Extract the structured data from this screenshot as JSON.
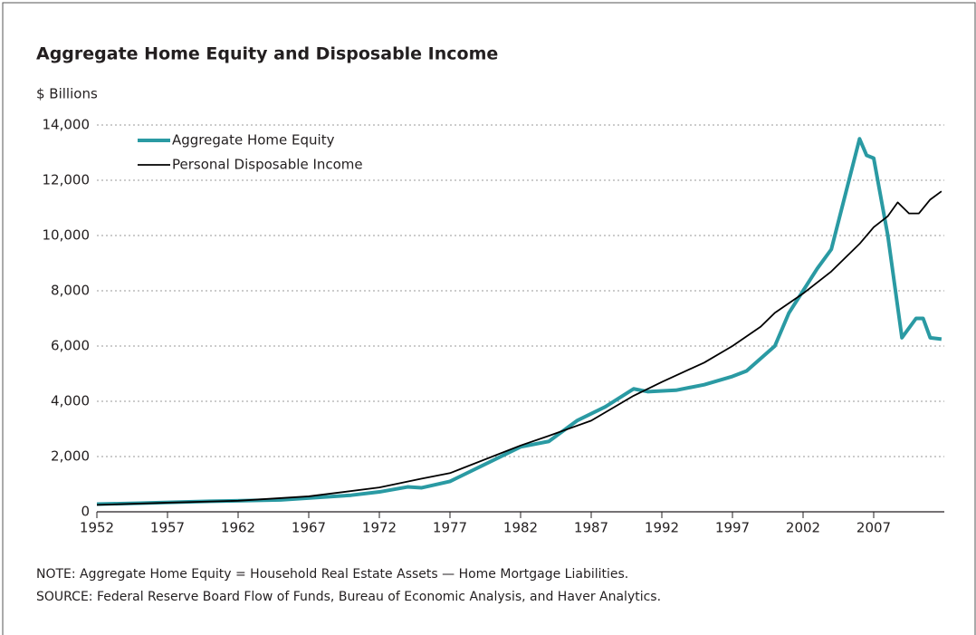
{
  "chart_data": {
    "type": "line",
    "title": "Aggregate Home Equity and Disposable Income",
    "y_label": "$ Billions",
    "note": "NOTE: Aggregate Home Equity = Household Real Estate Assets — Home Mortgage Liabilities.",
    "source": "SOURCE: Federal Reserve Board Flow of Funds, Bureau of Economic Analysis, and Haver Analytics.",
    "xlim": [
      1952,
      2012
    ],
    "xticks": [
      1952,
      1957,
      1962,
      1967,
      1972,
      1977,
      1982,
      1987,
      1992,
      1997,
      2002,
      2007
    ],
    "ylim": [
      0,
      14000
    ],
    "yticks": [
      0,
      {
        "value": 2000,
        "label": "2,000"
      },
      {
        "value": 4000,
        "label": "4,000"
      },
      {
        "value": 6000,
        "label": "6,000"
      },
      {
        "value": 8000,
        "label": "8,000"
      },
      {
        "value": 10000,
        "label": "10,000"
      },
      {
        "value": 12000,
        "label": "12,000"
      },
      {
        "value": 14000,
        "label": "14,000"
      }
    ],
    "grid": true,
    "legend": "top-left",
    "series": [
      {
        "name": "Aggregate Home Equity",
        "color": "#2a9aa3",
        "x": [
          1952,
          1955,
          1960,
          1965,
          1970,
          1972,
          1974,
          1975,
          1977,
          1980,
          1982,
          1984,
          1986,
          1988,
          1990,
          1991,
          1993,
          1995,
          1997,
          1998,
          2000,
          2001,
          2002,
          2003,
          2004,
          2005,
          2006,
          2006.5,
          2007,
          2008,
          2009,
          2010,
          2010.5,
          2011,
          2011.8
        ],
        "values": [
          280,
          310,
          380,
          430,
          600,
          720,
          900,
          870,
          1100,
          1850,
          2350,
          2550,
          3300,
          3800,
          4450,
          4350,
          4400,
          4600,
          4900,
          5100,
          6000,
          7200,
          8000,
          8800,
          9500,
          11500,
          13500,
          12900,
          12800,
          10000,
          6300,
          7000,
          7000,
          6300,
          6250
        ]
      },
      {
        "name": "Personal Disposable Income",
        "color": "#000000",
        "x": [
          1952,
          1957,
          1962,
          1967,
          1972,
          1975,
          1977,
          1980,
          1982,
          1984,
          1987,
          1990,
          1992,
          1995,
          1997,
          1999,
          2000,
          2002,
          2004,
          2006,
          2007,
          2008,
          2008.7,
          2009.5,
          2010.2,
          2011,
          2011.8
        ],
        "values": [
          250,
          330,
          400,
          560,
          880,
          1200,
          1400,
          2000,
          2400,
          2750,
          3300,
          4200,
          4700,
          5400,
          6000,
          6700,
          7200,
          7900,
          8700,
          9700,
          10300,
          10700,
          11200,
          10800,
          10800,
          11300,
          11600
        ]
      }
    ]
  }
}
